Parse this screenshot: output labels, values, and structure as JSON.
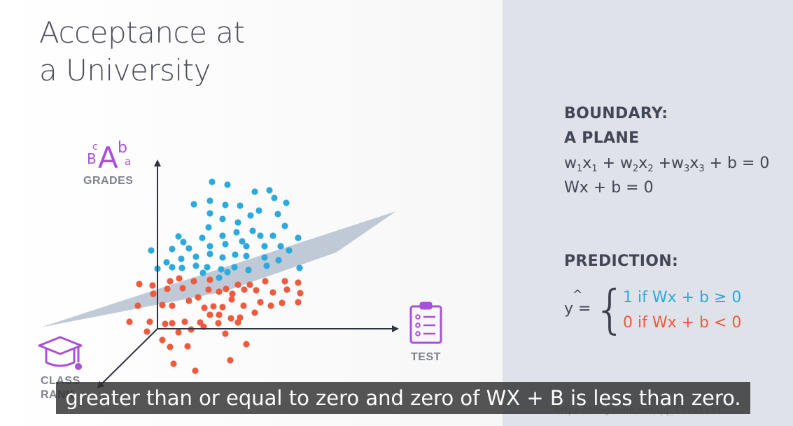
{
  "slide": {
    "title_line1": "Acceptance at",
    "title_line2": "a University"
  },
  "diagram": {
    "axis_grades_label": "GRADES",
    "axis_test_label": "TEST",
    "axis_class_rank_label": "CLASS RANK",
    "grades_icon_big": "A",
    "grades_icon_b_upper": "B",
    "grades_icon_c": "c",
    "grades_icon_b_lower": "b",
    "grades_icon_a": "a",
    "colors": {
      "accepted": "#2ea9db",
      "rejected": "#ee5a3d",
      "plane": "#a9b6c8",
      "axis": "#2f3340",
      "icon": "#a950d8"
    },
    "icons": [
      "grades-letters-icon",
      "test-clipboard-icon",
      "graduation-cap-icon"
    ]
  },
  "boundary": {
    "heading_line1": "BOUNDARY:",
    "heading_line2": "A PLANE",
    "equation1_parts": [
      "w",
      "1",
      "x",
      "1",
      " + w",
      "2",
      "x",
      "2",
      " +w",
      "3",
      "x",
      "3",
      " + b = 0"
    ],
    "equation2": "Wx + b = 0"
  },
  "prediction": {
    "heading": "PREDICTION:",
    "yhat_hat": "^",
    "yhat_label": "y =",
    "brace": "{",
    "case_positive": "1 if Wx + b ≥ 0",
    "case_negative": "0 if Wx + b < 0"
  },
  "subtitle": {
    "text": "greater than or equal to zero and zero of WX + B is less than zero."
  },
  "watermark": {
    "text": "https://blog.csdn.net/qq_37791134"
  }
}
